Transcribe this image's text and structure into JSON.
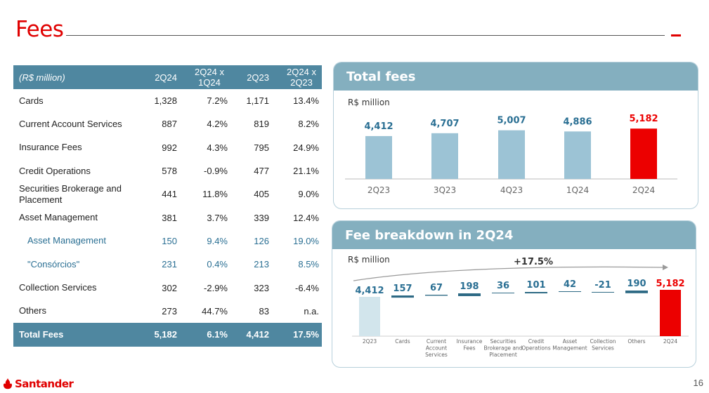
{
  "title": "Fees",
  "table": {
    "headers": [
      "(R$ million)",
      "2Q24",
      "2Q24 x 1Q24",
      "2Q23",
      "2Q24 x 2Q23"
    ],
    "rows": [
      {
        "label": "Cards",
        "v1": "1,328",
        "v2": "7.2%",
        "v3": "1,171",
        "v4": "13.4%",
        "sub": false
      },
      {
        "label": "Current Account Services",
        "v1": "887",
        "v2": "4.2%",
        "v3": "819",
        "v4": "8.2%",
        "sub": false
      },
      {
        "label": "Insurance Fees",
        "v1": "992",
        "v2": "4.3%",
        "v3": "795",
        "v4": "24.9%",
        "sub": false
      },
      {
        "label": "Credit Operations",
        "v1": "578",
        "v2": "-0.9%",
        "v3": "477",
        "v4": "21.1%",
        "sub": false
      },
      {
        "label": "Securities Brokerage and Placement",
        "v1": "441",
        "v2": "11.8%",
        "v3": "405",
        "v4": "9.0%",
        "sub": false
      },
      {
        "label": "Asset Management",
        "v1": "381",
        "v2": "3.7%",
        "v3": "339",
        "v4": "12.4%",
        "sub": false
      },
      {
        "label": "Asset Management",
        "v1": "150",
        "v2": "9.4%",
        "v3": "126",
        "v4": "19.0%",
        "sub": true
      },
      {
        "label": "\"Consórcios\"",
        "v1": "231",
        "v2": "0.4%",
        "v3": "213",
        "v4": "8.5%",
        "sub": true
      },
      {
        "label": "Collection Services",
        "v1": "302",
        "v2": "-2.9%",
        "v3": "323",
        "v4": "-6.4%",
        "sub": false
      },
      {
        "label": "Others",
        "v1": "273",
        "v2": "44.7%",
        "v3": "83",
        "v4": "n.a.",
        "sub": false
      }
    ],
    "total": {
      "label": "Total Fees",
      "v1": "5,182",
      "v2": "6.1%",
      "v3": "4,412",
      "v4": "17.5%"
    }
  },
  "total_fees_panel": {
    "title": "Total fees",
    "unit": "R$ million"
  },
  "breakdown_panel": {
    "title": "Fee breakdown in 2Q24",
    "unit": "R$ million",
    "growth_label": "+17.5%"
  },
  "chart_data": [
    {
      "type": "bar",
      "title": "Total fees",
      "ylabel": "R$ million",
      "categories": [
        "2Q23",
        "3Q23",
        "4Q23",
        "1Q24",
        "2Q24"
      ],
      "values": [
        4412,
        4707,
        5007,
        4886,
        5182
      ],
      "labels": [
        "4,412",
        "4,707",
        "5,007",
        "4,886",
        "5,182"
      ],
      "highlight_index": 4,
      "colors": {
        "base": "#9cc3d5",
        "highlight": "#ec0000",
        "label": "#2a6f93"
      }
    },
    {
      "type": "waterfall",
      "title": "Fee breakdown in 2Q24",
      "ylabel": "R$ million",
      "categories": [
        "2Q23",
        "Cards",
        "Current Account Services",
        "Insurance Fees",
        "Securities Brokerage and Placement",
        "Credit Operations",
        "Asset Management",
        "Collection Services",
        "Others",
        "2Q24"
      ],
      "values": [
        4412,
        157,
        67,
        198,
        36,
        101,
        42,
        -21,
        190,
        5182
      ],
      "labels": [
        "4,412",
        "157",
        "67",
        "198",
        "36",
        "101",
        "42",
        "-21",
        "190",
        "5,182"
      ],
      "annotation": "+17.5%",
      "colors": {
        "start": "#d2e5ec",
        "delta": "#2e6a85",
        "end": "#ec0000",
        "label": "#2a6f93"
      }
    }
  ],
  "footer": {
    "brand": "Santander",
    "page_number": "16"
  }
}
